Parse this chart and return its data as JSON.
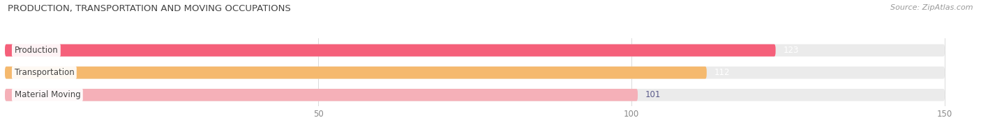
{
  "title": "PRODUCTION, TRANSPORTATION AND MOVING OCCUPATIONS",
  "source": "Source: ZipAtlas.com",
  "categories": [
    "Production",
    "Transportation",
    "Material Moving"
  ],
  "values": [
    123,
    112,
    101
  ],
  "bar_colors": [
    "#f5607a",
    "#f5b96e",
    "#f5b0b8"
  ],
  "bar_bg_color": "#ebebeb",
  "value_colors": [
    "#ffffff",
    "#ffffff",
    "#5a5a8a"
  ],
  "label_bg_colors": [
    "#ffffff",
    "#ffffff",
    "#ffffff"
  ],
  "xlim": [
    0,
    155
  ],
  "bar_max": 150,
  "xticks": [
    50,
    100,
    150
  ],
  "figsize": [
    14.06,
    1.96
  ],
  "dpi": 100,
  "title_fontsize": 9.5,
  "source_fontsize": 8,
  "bar_label_fontsize": 8.5,
  "category_fontsize": 8.5,
  "bar_height": 0.55,
  "bar_gap": 0.18,
  "background_color": "#ffffff"
}
